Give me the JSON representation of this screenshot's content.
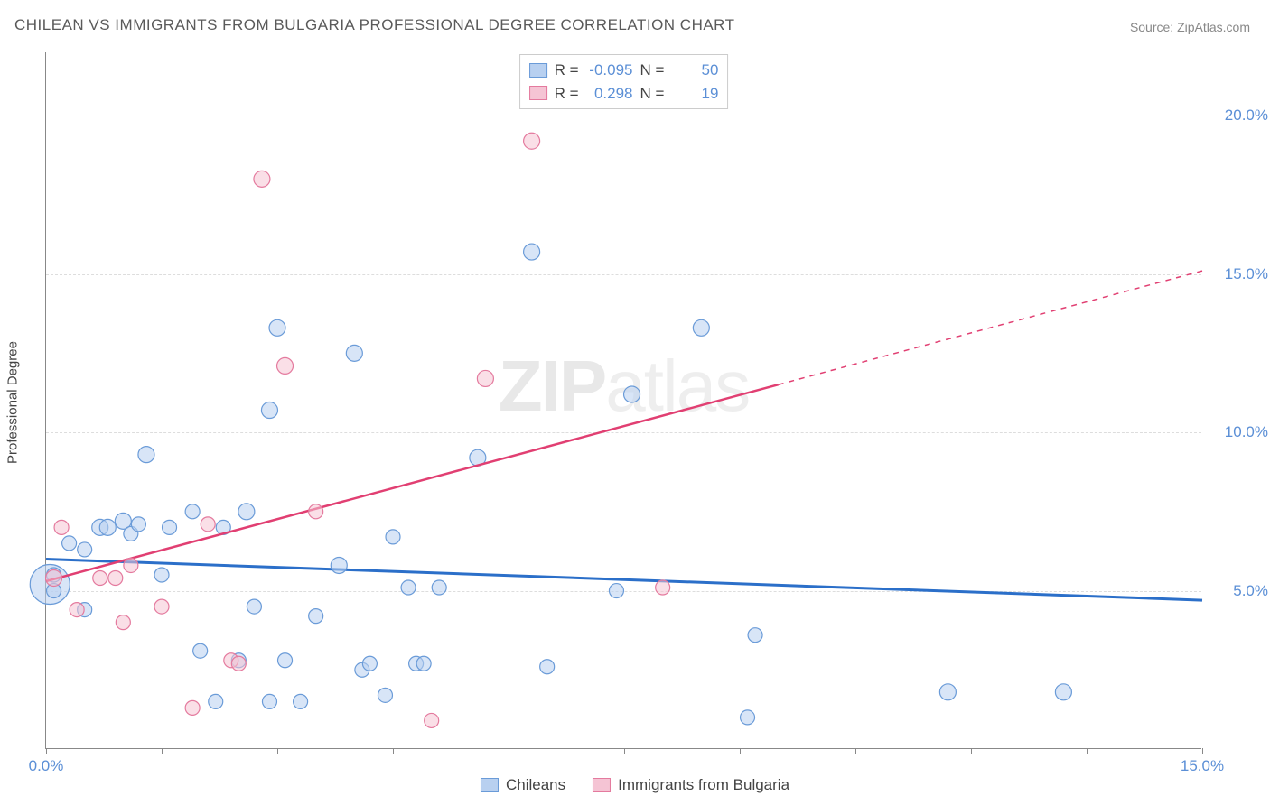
{
  "title": "CHILEAN VS IMMIGRANTS FROM BULGARIA PROFESSIONAL DEGREE CORRELATION CHART",
  "source_label": "Source: ",
  "source_value": "ZipAtlas.com",
  "y_axis_title": "Professional Degree",
  "watermark_a": "ZIP",
  "watermark_b": "atlas",
  "chart": {
    "type": "scatter",
    "background_color": "#ffffff",
    "grid_color": "#dddddd",
    "axis_color": "#888888",
    "xlim": [
      0,
      15
    ],
    "ylim": [
      0,
      22
    ],
    "x_ticks": [
      0,
      1.5,
      3.0,
      4.5,
      6.0,
      7.5,
      9.0,
      10.5,
      12.0,
      13.5,
      15.0
    ],
    "x_tick_labels": {
      "0": "0.0%",
      "15": "15.0%"
    },
    "y_gridlines": [
      5,
      10,
      15,
      20
    ],
    "y_tick_labels": {
      "5": "5.0%",
      "10": "10.0%",
      "15": "15.0%",
      "20": "20.0%"
    },
    "series": [
      {
        "name": "Chileans",
        "label": "Chileans",
        "color_fill": "#b8d0f0",
        "color_stroke": "#6a9bd8",
        "fill_opacity": 0.55,
        "regression": {
          "y_at_x0": 6.0,
          "y_at_xmax": 4.7,
          "solid_until_x": 15.0,
          "color": "#2b6fc9",
          "width": 3
        },
        "R": "-0.095",
        "N": "50",
        "points": [
          {
            "x": 0.05,
            "y": 5.2,
            "r": 22
          },
          {
            "x": 0.1,
            "y": 5.5,
            "r": 8
          },
          {
            "x": 0.1,
            "y": 5.0,
            "r": 8
          },
          {
            "x": 0.3,
            "y": 6.5,
            "r": 8
          },
          {
            "x": 0.5,
            "y": 6.3,
            "r": 8
          },
          {
            "x": 0.5,
            "y": 4.4,
            "r": 8
          },
          {
            "x": 0.7,
            "y": 7.0,
            "r": 9
          },
          {
            "x": 0.8,
            "y": 7.0,
            "r": 9
          },
          {
            "x": 1.0,
            "y": 7.2,
            "r": 9
          },
          {
            "x": 1.1,
            "y": 6.8,
            "r": 8
          },
          {
            "x": 1.2,
            "y": 7.1,
            "r": 8
          },
          {
            "x": 1.3,
            "y": 9.3,
            "r": 9
          },
          {
            "x": 1.5,
            "y": 5.5,
            "r": 8
          },
          {
            "x": 1.6,
            "y": 7.0,
            "r": 8
          },
          {
            "x": 1.9,
            "y": 7.5,
            "r": 8
          },
          {
            "x": 2.0,
            "y": 3.1,
            "r": 8
          },
          {
            "x": 2.2,
            "y": 1.5,
            "r": 8
          },
          {
            "x": 2.3,
            "y": 7.0,
            "r": 8
          },
          {
            "x": 2.5,
            "y": 2.8,
            "r": 8
          },
          {
            "x": 2.6,
            "y": 7.5,
            "r": 9
          },
          {
            "x": 2.7,
            "y": 4.5,
            "r": 8
          },
          {
            "x": 2.9,
            "y": 10.7,
            "r": 9
          },
          {
            "x": 2.9,
            "y": 1.5,
            "r": 8
          },
          {
            "x": 3.0,
            "y": 13.3,
            "r": 9
          },
          {
            "x": 3.1,
            "y": 2.8,
            "r": 8
          },
          {
            "x": 3.3,
            "y": 1.5,
            "r": 8
          },
          {
            "x": 3.5,
            "y": 4.2,
            "r": 8
          },
          {
            "x": 3.8,
            "y": 5.8,
            "r": 9
          },
          {
            "x": 4.0,
            "y": 12.5,
            "r": 9
          },
          {
            "x": 4.1,
            "y": 2.5,
            "r": 8
          },
          {
            "x": 4.2,
            "y": 2.7,
            "r": 8
          },
          {
            "x": 4.4,
            "y": 1.7,
            "r": 8
          },
          {
            "x": 4.5,
            "y": 6.7,
            "r": 8
          },
          {
            "x": 4.7,
            "y": 5.1,
            "r": 8
          },
          {
            "x": 4.8,
            "y": 2.7,
            "r": 8
          },
          {
            "x": 4.9,
            "y": 2.7,
            "r": 8
          },
          {
            "x": 5.1,
            "y": 5.1,
            "r": 8
          },
          {
            "x": 5.6,
            "y": 9.2,
            "r": 9
          },
          {
            "x": 6.3,
            "y": 15.7,
            "r": 9
          },
          {
            "x": 6.5,
            "y": 2.6,
            "r": 8
          },
          {
            "x": 7.4,
            "y": 5.0,
            "r": 8
          },
          {
            "x": 7.6,
            "y": 11.2,
            "r": 9
          },
          {
            "x": 8.5,
            "y": 13.3,
            "r": 9
          },
          {
            "x": 9.1,
            "y": 1.0,
            "r": 8
          },
          {
            "x": 9.2,
            "y": 3.6,
            "r": 8
          },
          {
            "x": 11.7,
            "y": 1.8,
            "r": 9
          },
          {
            "x": 13.2,
            "y": 1.8,
            "r": 9
          }
        ]
      },
      {
        "name": "Immigrants from Bulgaria",
        "label": "Immigrants from Bulgaria",
        "color_fill": "#f5c4d4",
        "color_stroke": "#e47a9e",
        "fill_opacity": 0.55,
        "regression": {
          "y_at_x0": 5.3,
          "y_at_xmax": 15.1,
          "solid_until_x": 9.5,
          "color": "#e13f72",
          "width": 2.5
        },
        "R": "0.298",
        "N": "19",
        "points": [
          {
            "x": 0.1,
            "y": 5.4,
            "r": 9
          },
          {
            "x": 0.2,
            "y": 7.0,
            "r": 8
          },
          {
            "x": 0.4,
            "y": 4.4,
            "r": 8
          },
          {
            "x": 0.7,
            "y": 5.4,
            "r": 8
          },
          {
            "x": 0.9,
            "y": 5.4,
            "r": 8
          },
          {
            "x": 1.0,
            "y": 4.0,
            "r": 8
          },
          {
            "x": 1.1,
            "y": 5.8,
            "r": 8
          },
          {
            "x": 1.5,
            "y": 4.5,
            "r": 8
          },
          {
            "x": 1.9,
            "y": 1.3,
            "r": 8
          },
          {
            "x": 2.1,
            "y": 7.1,
            "r": 8
          },
          {
            "x": 2.4,
            "y": 2.8,
            "r": 8
          },
          {
            "x": 2.5,
            "y": 2.7,
            "r": 8
          },
          {
            "x": 2.8,
            "y": 18.0,
            "r": 9
          },
          {
            "x": 3.1,
            "y": 12.1,
            "r": 9
          },
          {
            "x": 3.5,
            "y": 7.5,
            "r": 8
          },
          {
            "x": 5.0,
            "y": 0.9,
            "r": 8
          },
          {
            "x": 5.7,
            "y": 11.7,
            "r": 9
          },
          {
            "x": 6.3,
            "y": 19.2,
            "r": 9
          },
          {
            "x": 8.0,
            "y": 5.1,
            "r": 8
          }
        ]
      }
    ]
  },
  "stats_legend": {
    "R_label": "R =",
    "N_label": "N ="
  }
}
